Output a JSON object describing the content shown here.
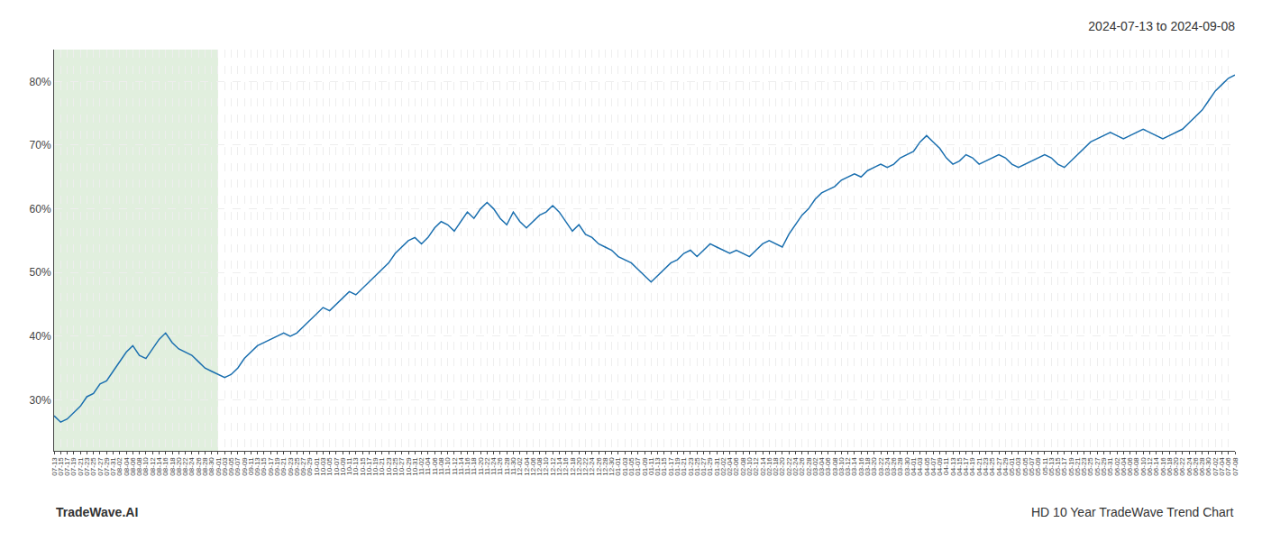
{
  "chart_data": {
    "type": "line",
    "title": "2024-07-13 to 2024-09-08",
    "annotations": [
      "TradeWave.AI",
      "HD 10 Year TradeWave Trend Chart"
    ],
    "color": "#1a6faf",
    "shade": {
      "start": "07-13",
      "end": "09-01",
      "color": "#d4e8d0"
    },
    "grid": true,
    "ylim": [
      22,
      85
    ],
    "yticks": [
      {
        "value": 30,
        "label": "30%"
      },
      {
        "value": 40,
        "label": "40%"
      },
      {
        "value": 50,
        "label": "50%"
      },
      {
        "value": 60,
        "label": "60%"
      },
      {
        "value": 70,
        "label": "70%"
      },
      {
        "value": 80,
        "label": "80%"
      }
    ],
    "categories": [
      "07-13",
      "07-15",
      "07-17",
      "07-19",
      "07-21",
      "07-23",
      "07-25",
      "07-27",
      "07-29",
      "07-31",
      "08-02",
      "08-04",
      "08-06",
      "08-08",
      "08-10",
      "08-12",
      "08-14",
      "08-16",
      "08-18",
      "08-20",
      "08-22",
      "08-24",
      "08-26",
      "08-28",
      "08-30",
      "09-01",
      "09-03",
      "09-05",
      "09-07",
      "09-09",
      "09-11",
      "09-13",
      "09-15",
      "09-17",
      "09-19",
      "09-21",
      "09-23",
      "09-25",
      "09-27",
      "09-29",
      "10-01",
      "10-03",
      "10-05",
      "10-07",
      "10-09",
      "10-11",
      "10-13",
      "10-15",
      "10-17",
      "10-19",
      "10-21",
      "10-23",
      "10-25",
      "10-27",
      "10-29",
      "10-31",
      "11-02",
      "11-04",
      "11-06",
      "11-08",
      "11-10",
      "11-12",
      "11-14",
      "11-16",
      "11-18",
      "11-20",
      "11-22",
      "11-24",
      "11-26",
      "11-28",
      "11-30",
      "12-02",
      "12-04",
      "12-06",
      "12-08",
      "12-10",
      "12-12",
      "12-14",
      "12-16",
      "12-18",
      "12-20",
      "12-22",
      "12-24",
      "12-26",
      "12-28",
      "12-30",
      "01-01",
      "01-03",
      "01-05",
      "01-07",
      "01-09",
      "01-11",
      "01-13",
      "01-15",
      "01-17",
      "01-19",
      "01-21",
      "01-23",
      "01-25",
      "01-27",
      "01-29",
      "01-31",
      "02-02",
      "02-04",
      "02-06",
      "02-08",
      "02-10",
      "02-12",
      "02-14",
      "02-16",
      "02-18",
      "02-20",
      "02-22",
      "02-24",
      "02-26",
      "02-28",
      "03-02",
      "03-04",
      "03-06",
      "03-08",
      "03-10",
      "03-12",
      "03-14",
      "03-16",
      "03-18",
      "03-20",
      "03-22",
      "03-24",
      "03-26",
      "03-28",
      "03-30",
      "04-01",
      "04-03",
      "04-05",
      "04-07",
      "04-09",
      "04-11",
      "04-13",
      "04-15",
      "04-17",
      "04-19",
      "04-21",
      "04-23",
      "04-25",
      "04-27",
      "04-29",
      "05-01",
      "05-03",
      "05-05",
      "05-07",
      "05-09",
      "05-11",
      "05-13",
      "05-15",
      "05-17",
      "05-19",
      "05-21",
      "05-23",
      "05-25",
      "05-27",
      "05-29",
      "05-31",
      "06-02",
      "06-04",
      "06-06",
      "06-08",
      "06-10",
      "06-12",
      "06-14",
      "06-16",
      "06-18",
      "06-20",
      "06-22",
      "06-24",
      "06-26",
      "06-28",
      "06-30",
      "07-02",
      "07-04",
      "07-06",
      "07-08"
    ],
    "values": [
      27.5,
      26.5,
      27.0,
      28.0,
      29.0,
      30.5,
      31.0,
      32.5,
      33.0,
      34.5,
      36.0,
      37.5,
      38.5,
      37.0,
      36.5,
      38.0,
      39.5,
      40.5,
      39.0,
      38.0,
      37.5,
      37.0,
      36.0,
      35.0,
      34.5,
      34.0,
      33.5,
      34.0,
      35.0,
      36.5,
      37.5,
      38.5,
      39.0,
      39.5,
      40.0,
      40.5,
      40.0,
      40.5,
      41.5,
      42.5,
      43.5,
      44.5,
      44.0,
      45.0,
      46.0,
      47.0,
      46.5,
      47.5,
      48.5,
      49.5,
      50.5,
      51.5,
      53.0,
      54.0,
      55.0,
      55.5,
      54.5,
      55.5,
      57.0,
      58.0,
      57.5,
      56.5,
      58.0,
      59.5,
      58.5,
      60.0,
      61.0,
      60.0,
      58.5,
      57.5,
      59.5,
      58.0,
      57.0,
      58.0,
      59.0,
      59.5,
      60.5,
      59.5,
      58.0,
      56.5,
      57.5,
      56.0,
      55.5,
      54.5,
      54.0,
      53.5,
      52.5,
      52.0,
      51.5,
      50.5,
      49.5,
      48.5,
      49.5,
      50.5,
      51.5,
      52.0,
      53.0,
      53.5,
      52.5,
      53.5,
      54.5,
      54.0,
      53.5,
      53.0,
      53.5,
      53.0,
      52.5,
      53.5,
      54.5,
      55.0,
      54.5,
      54.0,
      56.0,
      57.5,
      59.0,
      60.0,
      61.5,
      62.5,
      63.0,
      63.5,
      64.5,
      65.0,
      65.5,
      65.0,
      66.0,
      66.5,
      67.0,
      66.5,
      67.0,
      68.0,
      68.5,
      69.0,
      70.5,
      71.5,
      70.5,
      69.5,
      68.0,
      67.0,
      67.5,
      68.5,
      68.0,
      67.0,
      67.5,
      68.0,
      68.5,
      68.0,
      67.0,
      66.5,
      67.0,
      67.5,
      68.0,
      68.5,
      68.0,
      67.0,
      66.5,
      67.5,
      68.5,
      69.5,
      70.5,
      71.0,
      71.5,
      72.0,
      71.5,
      71.0,
      71.5,
      72.0,
      72.5,
      72.0,
      71.5,
      71.0,
      71.5,
      72.0,
      72.5,
      73.5,
      74.5,
      75.5,
      77.0,
      78.5,
      79.5,
      80.5,
      81.0
    ]
  }
}
